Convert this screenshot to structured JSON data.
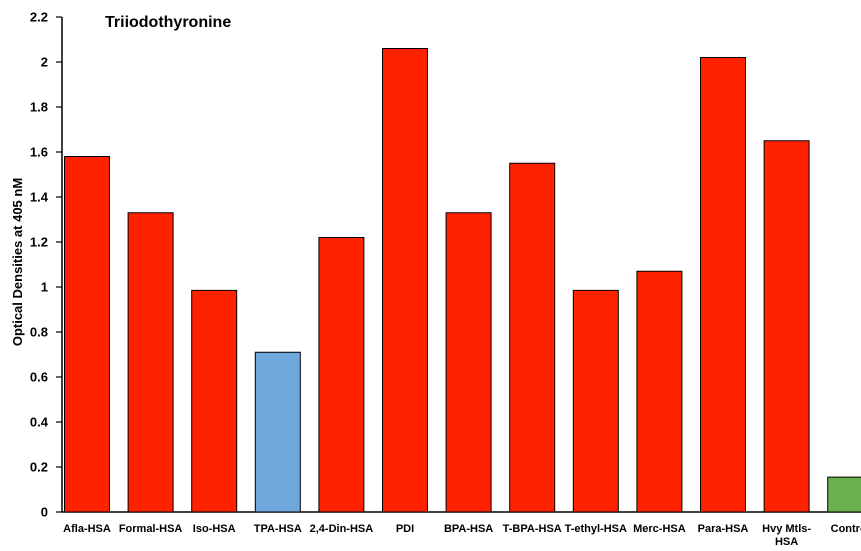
{
  "chart_data": {
    "type": "bar",
    "title": "Triiodothyronine",
    "ylabel": "Optical Densities at 405 nM",
    "xlabel": "",
    "ylim": [
      0,
      2.2
    ],
    "yticks": [
      0,
      0.2,
      0.4,
      0.6,
      0.8,
      1,
      1.2,
      1.4,
      1.6,
      1.8,
      2,
      2.2
    ],
    "ytick_labels": [
      "0",
      "0.2",
      "0.4",
      "0.6",
      "0.8",
      "1",
      "1.2",
      "1.4",
      "1.6",
      "1.8",
      "2",
      "2.2"
    ],
    "grid": false,
    "categories": [
      "Afla-HSA",
      "Formal-HSA",
      "Iso-HSA",
      "TPA-HSA",
      "2,4-Din-HSA",
      "PDI",
      "BPA-HSA",
      "T-BPA-HSA",
      "T-ethyl-HSA",
      "Merc-HSA",
      "Para-HSA",
      "Hvy Mtls-HSA",
      "Control"
    ],
    "category_label_lines": [
      [
        "Afla-HSA"
      ],
      [
        "Formal-HSA"
      ],
      [
        "Iso-HSA"
      ],
      [
        "TPA-HSA"
      ],
      [
        "2,4-Din-HSA"
      ],
      [
        "PDI"
      ],
      [
        "BPA-HSA"
      ],
      [
        "T-BPA-HSA"
      ],
      [
        "T-ethyl-HSA"
      ],
      [
        "Merc-HSA"
      ],
      [
        "Para-HSA"
      ],
      [
        "Hvy Mtls-",
        "HSA"
      ],
      [
        "Control"
      ]
    ],
    "values": [
      1.58,
      1.33,
      0.985,
      0.71,
      1.22,
      2.06,
      1.33,
      1.55,
      0.985,
      1.07,
      2.02,
      1.65,
      0.155
    ],
    "bar_colors": [
      "#ff2200",
      "#ff2200",
      "#ff2200",
      "#6fa8dc",
      "#ff2200",
      "#ff2200",
      "#ff2200",
      "#ff2200",
      "#ff2200",
      "#ff2200",
      "#ff2200",
      "#ff2200",
      "#6ab04c"
    ],
    "bar_stroke": "#000000",
    "axis_color": "#000000"
  }
}
